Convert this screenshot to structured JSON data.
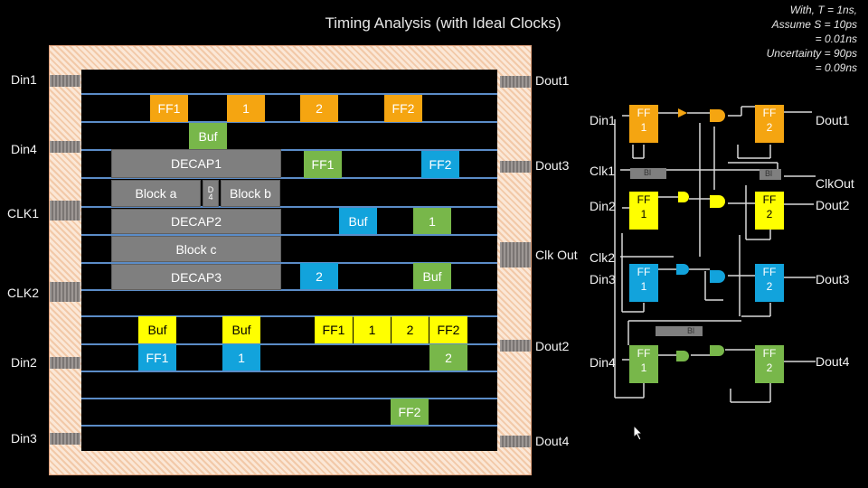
{
  "title": "Timing Analysis (with Ideal Clocks)",
  "notes": [
    "With, T = 1ns,",
    "Assume S = 10ps",
    "= 0.01ns",
    "Uncertainty = 90ps",
    "= 0.09ns"
  ],
  "colors": {
    "orange": "#f5a511",
    "green": "#78b74a",
    "blue": "#12a3dc",
    "yellow": "#ffff00",
    "gray": "#7f7f7f",
    "rail": "#5b8cc7"
  },
  "chip": {
    "left_pads": [
      "Din1",
      "Din4",
      "CLK1",
      "CLK2",
      "Din2",
      "Din3"
    ],
    "right_pads": [
      "Dout1",
      "Dout3",
      "Clk Out",
      "Dout2",
      "Dout4"
    ],
    "blocks": {
      "ff1_o": "FF1",
      "one_o": "1",
      "two_o": "2",
      "ff2_o": "FF2",
      "buf_g1": "Buf",
      "decap1": "DECAP1",
      "ff1_g": "FF1",
      "ff2_b": "FF2",
      "block_a": "Block a",
      "d4a": "D",
      "d4b": "4",
      "block_b": "Block b",
      "decap2": "DECAP2",
      "buf_b1": "Buf",
      "one_g": "1",
      "block_c": "Block c",
      "decap3": "DECAP3",
      "two_b": "2",
      "buf_g2": "Buf",
      "buf_y1": "Buf",
      "buf_y2": "Buf",
      "ff1_y": "FF1",
      "one_y": "1",
      "two_y": "2",
      "ff2_y": "FF2",
      "ff1_b": "FF1",
      "one_b": "1",
      "two_g": "2",
      "ff2_g": "FF2"
    }
  },
  "schematic": {
    "inputs": [
      "Din1",
      "Clk1",
      "Din2",
      "Clk2",
      "Din3",
      "Din4"
    ],
    "outputs": [
      "Dout1",
      "ClkOut",
      "Dout2",
      "Dout3",
      "Dout4"
    ],
    "ff_labels": {
      "ff": "FF",
      "n1": "1",
      "n2": "2"
    },
    "block_labels": [
      "Bl",
      "Bl",
      "Bl"
    ]
  }
}
